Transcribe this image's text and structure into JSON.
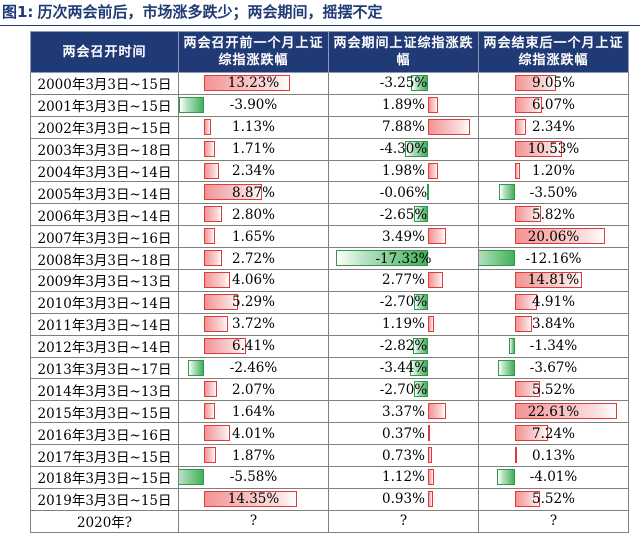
{
  "figure": {
    "label": "图1:",
    "title": "历次两会前后，市场涨多跌少；两会期间，摇摆不定"
  },
  "table": {
    "headers": [
      "两会召开时间",
      "两会召开前一个月上证综指涨跌幅",
      "两会期间上证综指涨跌幅",
      "两会结束后一个月上证综指涨跌幅"
    ],
    "rows": [
      {
        "date": "2000年3月3日~15日",
        "before": "13.23%",
        "during": "-3.25%",
        "after": "9.05%",
        "bv": 13.23,
        "dv": -3.25,
        "av": 9.05
      },
      {
        "date": "2001年3月3日~15日",
        "before": "-3.90%",
        "during": "1.89%",
        "after": "6.07%",
        "bv": -3.9,
        "dv": 1.89,
        "av": 6.07
      },
      {
        "date": "2002年3月3日~15日",
        "before": "1.13%",
        "during": "7.88%",
        "after": "2.34%",
        "bv": 1.13,
        "dv": 7.88,
        "av": 2.34
      },
      {
        "date": "2003年3月3日~18日",
        "before": "1.71%",
        "during": "-4.30%",
        "after": "10.53%",
        "bv": 1.71,
        "dv": -4.3,
        "av": 10.53
      },
      {
        "date": "2004年3月3日~14日",
        "before": "2.34%",
        "during": "1.98%",
        "after": "1.20%",
        "bv": 2.34,
        "dv": 1.98,
        "av": 1.2
      },
      {
        "date": "2005年3月3日~14日",
        "before": "8.87%",
        "during": "-0.06%",
        "after": "-3.50%",
        "bv": 8.87,
        "dv": -0.06,
        "av": -3.5
      },
      {
        "date": "2006年3月3日~14日",
        "before": "2.80%",
        "during": "-2.65%",
        "after": "5.82%",
        "bv": 2.8,
        "dv": -2.65,
        "av": 5.82
      },
      {
        "date": "2007年3月3日~16日",
        "before": "1.65%",
        "during": "3.49%",
        "after": "20.06%",
        "bv": 1.65,
        "dv": 3.49,
        "av": 20.06
      },
      {
        "date": "2008年3月3日~18日",
        "before": "2.72%",
        "during": "-17.33%",
        "after": "-12.16%",
        "bv": 2.72,
        "dv": -17.33,
        "av": -12.16
      },
      {
        "date": "2009年3月3日~13日",
        "before": "4.06%",
        "during": "2.77%",
        "after": "14.81%",
        "bv": 4.06,
        "dv": 2.77,
        "av": 14.81
      },
      {
        "date": "2010年3月3日~14日",
        "before": "5.29%",
        "during": "-2.70%",
        "after": "4.91%",
        "bv": 5.29,
        "dv": -2.7,
        "av": 4.91
      },
      {
        "date": "2011年3月3日~14日",
        "before": "3.72%",
        "during": "1.19%",
        "after": "3.84%",
        "bv": 3.72,
        "dv": 1.19,
        "av": 3.84
      },
      {
        "date": "2012年3月3日~14日",
        "before": "6.41%",
        "during": "-2.82%",
        "after": "-1.34%",
        "bv": 6.41,
        "dv": -2.82,
        "av": -1.34
      },
      {
        "date": "2013年3月3日~17日",
        "before": "-2.46%",
        "during": "-3.44%",
        "after": "-3.67%",
        "bv": -2.46,
        "dv": -3.44,
        "av": -3.67
      },
      {
        "date": "2014年3月3日~13日",
        "before": "2.07%",
        "during": "-2.70%",
        "after": "5.52%",
        "bv": 2.07,
        "dv": -2.7,
        "av": 5.52
      },
      {
        "date": "2015年3月3日~15日",
        "before": "1.64%",
        "during": "3.37%",
        "after": "22.61%",
        "bv": 1.64,
        "dv": 3.37,
        "av": 22.61
      },
      {
        "date": "2016年3月3日~16日",
        "before": "4.01%",
        "during": "0.37%",
        "after": "7.24%",
        "bv": 4.01,
        "dv": 0.37,
        "av": 7.24
      },
      {
        "date": "2017年3月3日~15日",
        "before": "1.87%",
        "during": "0.73%",
        "after": "0.13%",
        "bv": 1.87,
        "dv": 0.73,
        "av": 0.13
      },
      {
        "date": "2018年3月3日~15日",
        "before": "-5.58%",
        "during": "1.12%",
        "after": "-4.01%",
        "bv": -5.58,
        "dv": 1.12,
        "av": -4.01
      },
      {
        "date": "2019年3月3日~15日",
        "before": "14.35%",
        "during": "0.93%",
        "after": "5.52%",
        "bv": 14.35,
        "dv": 0.93,
        "av": 5.52
      }
    ],
    "last_row": {
      "date": "2020年?",
      "before": "?",
      "during": "?",
      "after": "?"
    }
  }
}
